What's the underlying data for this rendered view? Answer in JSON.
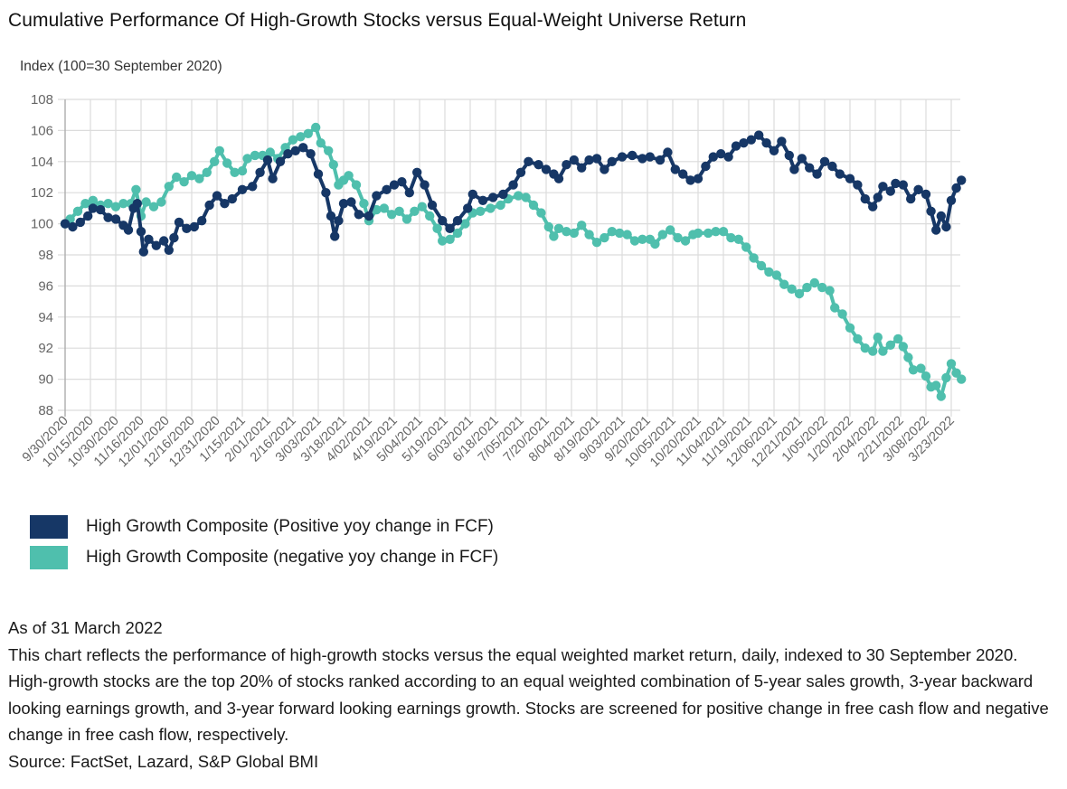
{
  "title": "Cumulative Performance Of High-Growth Stocks versus Equal-Weight Universe Return",
  "footer": {
    "as_of": "As of 31 March 2022",
    "description": "This chart reflects the performance of high-growth stocks versus the equal weighted market return, daily, indexed to 30 September 2020. High-growth stocks are the top 20% of stocks ranked according to an equal weighted combination of 5-year sales growth, 3-year backward looking earnings growth, and 3-year forward looking earnings growth. Stocks are screened for positive change in free cash flow and negative change in free cash flow, respectively.",
    "source": "Source: FactSet, Lazard, S&P Global BMI"
  },
  "chart_data": {
    "type": "line",
    "title": "Cumulative Performance Of High-Growth Stocks versus Equal-Weight Universe Return",
    "xlabel": "",
    "ylabel": "Index (100=30 September 2020)",
    "ylim": [
      88,
      108
    ],
    "yticks": [
      88,
      90,
      92,
      94,
      96,
      98,
      100,
      102,
      104,
      106,
      108
    ],
    "grid": true,
    "legend_position": "bottom-left",
    "categories": [
      "9/30/2020",
      "10/15/2020",
      "10/30/2020",
      "11/16/2020",
      "12/01/2020",
      "12/16/2020",
      "12/31/2020",
      "1/15/2021",
      "2/01/2021",
      "2/16/2021",
      "3/03/2021",
      "3/18/2021",
      "4/02/2021",
      "4/19/2021",
      "5/04/2021",
      "5/19/2021",
      "6/03/2021",
      "6/18/2021",
      "7/05/2021",
      "7/20/2021",
      "8/04/2021",
      "8/19/2021",
      "9/03/2021",
      "9/20/2021",
      "10/05/2021",
      "10/20/2021",
      "11/04/2021",
      "11/19/2021",
      "12/06/2021",
      "12/21/2021",
      "1/05/2022",
      "1/20/2022",
      "2/04/2022",
      "2/21/2022",
      "3/08/2022",
      "3/23/2022"
    ],
    "x_end_index": 35.4,
    "series": [
      {
        "name": "High Growth Composite (Positive yoy change in FCF)",
        "color": "#163766",
        "points": [
          [
            0,
            100
          ],
          [
            0.3,
            99.8
          ],
          [
            0.6,
            100.1
          ],
          [
            0.9,
            100.5
          ],
          [
            1.1,
            101
          ],
          [
            1.4,
            100.9
          ],
          [
            1.7,
            100.4
          ],
          [
            2,
            100.3
          ],
          [
            2.3,
            99.9
          ],
          [
            2.5,
            99.6
          ],
          [
            2.7,
            101
          ],
          [
            2.85,
            101.3
          ],
          [
            3,
            99.5
          ],
          [
            3.1,
            98.2
          ],
          [
            3.3,
            99
          ],
          [
            3.6,
            98.6
          ],
          [
            3.9,
            98.9
          ],
          [
            4.1,
            98.3
          ],
          [
            4.3,
            99.1
          ],
          [
            4.5,
            100.1
          ],
          [
            4.8,
            99.7
          ],
          [
            5.1,
            99.8
          ],
          [
            5.4,
            100.2
          ],
          [
            5.7,
            101.2
          ],
          [
            6,
            101.8
          ],
          [
            6.3,
            101.3
          ],
          [
            6.6,
            101.6
          ],
          [
            7,
            102.2
          ],
          [
            7.4,
            102.4
          ],
          [
            7.7,
            103.3
          ],
          [
            8,
            104.1
          ],
          [
            8.2,
            102.9
          ],
          [
            8.5,
            104
          ],
          [
            8.8,
            104.5
          ],
          [
            9.1,
            104.7
          ],
          [
            9.4,
            104.9
          ],
          [
            9.7,
            104.5
          ],
          [
            10,
            103.2
          ],
          [
            10.3,
            102
          ],
          [
            10.5,
            100.5
          ],
          [
            10.65,
            99.2
          ],
          [
            10.8,
            100.2
          ],
          [
            11,
            101.3
          ],
          [
            11.3,
            101.4
          ],
          [
            11.6,
            100.6
          ],
          [
            12,
            100.5
          ],
          [
            12.3,
            101.8
          ],
          [
            12.7,
            102.2
          ],
          [
            13,
            102.5
          ],
          [
            13.3,
            102.7
          ],
          [
            13.6,
            102
          ],
          [
            13.9,
            103.3
          ],
          [
            14.2,
            102.5
          ],
          [
            14.5,
            101.2
          ],
          [
            14.9,
            100.2
          ],
          [
            15.2,
            99.7
          ],
          [
            15.5,
            100.2
          ],
          [
            15.9,
            101
          ],
          [
            16.1,
            101.9
          ],
          [
            16.5,
            101.5
          ],
          [
            16.9,
            101.7
          ],
          [
            17.3,
            101.9
          ],
          [
            17.7,
            102.5
          ],
          [
            18,
            103.3
          ],
          [
            18.3,
            104
          ],
          [
            18.7,
            103.8
          ],
          [
            19,
            103.5
          ],
          [
            19.3,
            103.2
          ],
          [
            19.5,
            102.9
          ],
          [
            19.8,
            103.8
          ],
          [
            20.1,
            104.1
          ],
          [
            20.4,
            103.6
          ],
          [
            20.7,
            104.1
          ],
          [
            21,
            104.2
          ],
          [
            21.3,
            103.5
          ],
          [
            21.6,
            104
          ],
          [
            22,
            104.3
          ],
          [
            22.4,
            104.4
          ],
          [
            22.8,
            104.2
          ],
          [
            23.1,
            104.3
          ],
          [
            23.5,
            104.1
          ],
          [
            23.8,
            104.6
          ],
          [
            24.1,
            103.5
          ],
          [
            24.4,
            103.2
          ],
          [
            24.7,
            102.8
          ],
          [
            25,
            102.9
          ],
          [
            25.3,
            103.7
          ],
          [
            25.6,
            104.3
          ],
          [
            25.9,
            104.5
          ],
          [
            26.2,
            104.3
          ],
          [
            26.5,
            105
          ],
          [
            26.8,
            105.2
          ],
          [
            27.1,
            105.4
          ],
          [
            27.4,
            105.7
          ],
          [
            27.7,
            105.2
          ],
          [
            28,
            104.7
          ],
          [
            28.3,
            105.3
          ],
          [
            28.6,
            104.4
          ],
          [
            28.8,
            103.5
          ],
          [
            29.1,
            104.2
          ],
          [
            29.4,
            103.6
          ],
          [
            29.7,
            103.2
          ],
          [
            30,
            104
          ],
          [
            30.3,
            103.7
          ],
          [
            30.6,
            103.2
          ],
          [
            31,
            102.9
          ],
          [
            31.3,
            102.5
          ],
          [
            31.6,
            101.6
          ],
          [
            31.9,
            101.1
          ],
          [
            32.1,
            101.7
          ],
          [
            32.3,
            102.4
          ],
          [
            32.6,
            102.1
          ],
          [
            32.8,
            102.6
          ],
          [
            33.1,
            102.5
          ],
          [
            33.4,
            101.6
          ],
          [
            33.7,
            102.2
          ],
          [
            34,
            101.9
          ],
          [
            34.2,
            100.8
          ],
          [
            34.4,
            99.6
          ],
          [
            34.6,
            100.5
          ],
          [
            34.8,
            99.8
          ],
          [
            35,
            101.5
          ],
          [
            35.2,
            102.3
          ],
          [
            35.4,
            102.8
          ]
        ]
      },
      {
        "name": "High Growth Composite (negative yoy change in FCF)",
        "color": "#4fbfad",
        "points": [
          [
            0,
            100
          ],
          [
            0.2,
            100.3
          ],
          [
            0.5,
            100.8
          ],
          [
            0.8,
            101.3
          ],
          [
            1.1,
            101.5
          ],
          [
            1.4,
            101.2
          ],
          [
            1.7,
            101.3
          ],
          [
            2,
            101.1
          ],
          [
            2.3,
            101.3
          ],
          [
            2.6,
            101.3
          ],
          [
            2.8,
            102.2
          ],
          [
            3,
            100.5
          ],
          [
            3.2,
            101.4
          ],
          [
            3.5,
            101.1
          ],
          [
            3.8,
            101.4
          ],
          [
            4.1,
            102.4
          ],
          [
            4.4,
            103
          ],
          [
            4.7,
            102.7
          ],
          [
            5,
            103.1
          ],
          [
            5.3,
            102.9
          ],
          [
            5.6,
            103.3
          ],
          [
            5.9,
            104
          ],
          [
            6.1,
            104.7
          ],
          [
            6.4,
            103.9
          ],
          [
            6.7,
            103.3
          ],
          [
            7,
            103.4
          ],
          [
            7.2,
            104.2
          ],
          [
            7.5,
            104.4
          ],
          [
            7.8,
            104.4
          ],
          [
            8.1,
            104.6
          ],
          [
            8.4,
            104.2
          ],
          [
            8.7,
            104.9
          ],
          [
            9,
            105.4
          ],
          [
            9.3,
            105.6
          ],
          [
            9.6,
            105.8
          ],
          [
            9.9,
            106.2
          ],
          [
            10.1,
            105.2
          ],
          [
            10.4,
            104.7
          ],
          [
            10.6,
            103.8
          ],
          [
            10.8,
            102.5
          ],
          [
            11,
            102.8
          ],
          [
            11.2,
            103.1
          ],
          [
            11.5,
            102.5
          ],
          [
            11.8,
            101.3
          ],
          [
            12,
            100.2
          ],
          [
            12.3,
            100.9
          ],
          [
            12.6,
            101
          ],
          [
            12.9,
            100.6
          ],
          [
            13.2,
            100.8
          ],
          [
            13.5,
            100.3
          ],
          [
            13.8,
            100.8
          ],
          [
            14.1,
            101.1
          ],
          [
            14.4,
            100.5
          ],
          [
            14.7,
            99.7
          ],
          [
            14.9,
            98.9
          ],
          [
            15.2,
            99
          ],
          [
            15.5,
            99.4
          ],
          [
            15.8,
            100
          ],
          [
            16.1,
            100.7
          ],
          [
            16.4,
            100.8
          ],
          [
            16.8,
            101
          ],
          [
            17.2,
            101.2
          ],
          [
            17.5,
            101.6
          ],
          [
            17.9,
            101.8
          ],
          [
            18.2,
            101.7
          ],
          [
            18.5,
            101.2
          ],
          [
            18.8,
            100.7
          ],
          [
            19.1,
            99.8
          ],
          [
            19.3,
            99.2
          ],
          [
            19.5,
            99.7
          ],
          [
            19.8,
            99.5
          ],
          [
            20.1,
            99.4
          ],
          [
            20.4,
            99.9
          ],
          [
            20.7,
            99.3
          ],
          [
            21,
            98.8
          ],
          [
            21.3,
            99.1
          ],
          [
            21.6,
            99.5
          ],
          [
            21.9,
            99.4
          ],
          [
            22.2,
            99.3
          ],
          [
            22.5,
            98.9
          ],
          [
            22.8,
            99
          ],
          [
            23.1,
            99
          ],
          [
            23.3,
            98.7
          ],
          [
            23.6,
            99.3
          ],
          [
            23.9,
            99.6
          ],
          [
            24.2,
            99.1
          ],
          [
            24.5,
            98.9
          ],
          [
            24.8,
            99.3
          ],
          [
            25,
            99.4
          ],
          [
            25.4,
            99.4
          ],
          [
            25.7,
            99.5
          ],
          [
            26,
            99.5
          ],
          [
            26.3,
            99.1
          ],
          [
            26.6,
            99
          ],
          [
            26.9,
            98.5
          ],
          [
            27.2,
            97.8
          ],
          [
            27.5,
            97.3
          ],
          [
            27.8,
            96.9
          ],
          [
            28.1,
            96.7
          ],
          [
            28.4,
            96.1
          ],
          [
            28.7,
            95.8
          ],
          [
            29,
            95.5
          ],
          [
            29.3,
            95.9
          ],
          [
            29.6,
            96.2
          ],
          [
            29.9,
            95.9
          ],
          [
            30.2,
            95.7
          ],
          [
            30.4,
            94.6
          ],
          [
            30.7,
            94.2
          ],
          [
            31,
            93.3
          ],
          [
            31.3,
            92.6
          ],
          [
            31.6,
            92
          ],
          [
            31.9,
            91.8
          ],
          [
            32.1,
            92.7
          ],
          [
            32.3,
            91.8
          ],
          [
            32.6,
            92.2
          ],
          [
            32.9,
            92.6
          ],
          [
            33.1,
            92.1
          ],
          [
            33.3,
            91.4
          ],
          [
            33.5,
            90.6
          ],
          [
            33.8,
            90.7
          ],
          [
            34,
            90.2
          ],
          [
            34.2,
            89.5
          ],
          [
            34.4,
            89.6
          ],
          [
            34.6,
            88.9
          ],
          [
            34.8,
            90.1
          ],
          [
            35,
            91
          ],
          [
            35.2,
            90.4
          ],
          [
            35.4,
            90
          ]
        ]
      }
    ]
  }
}
